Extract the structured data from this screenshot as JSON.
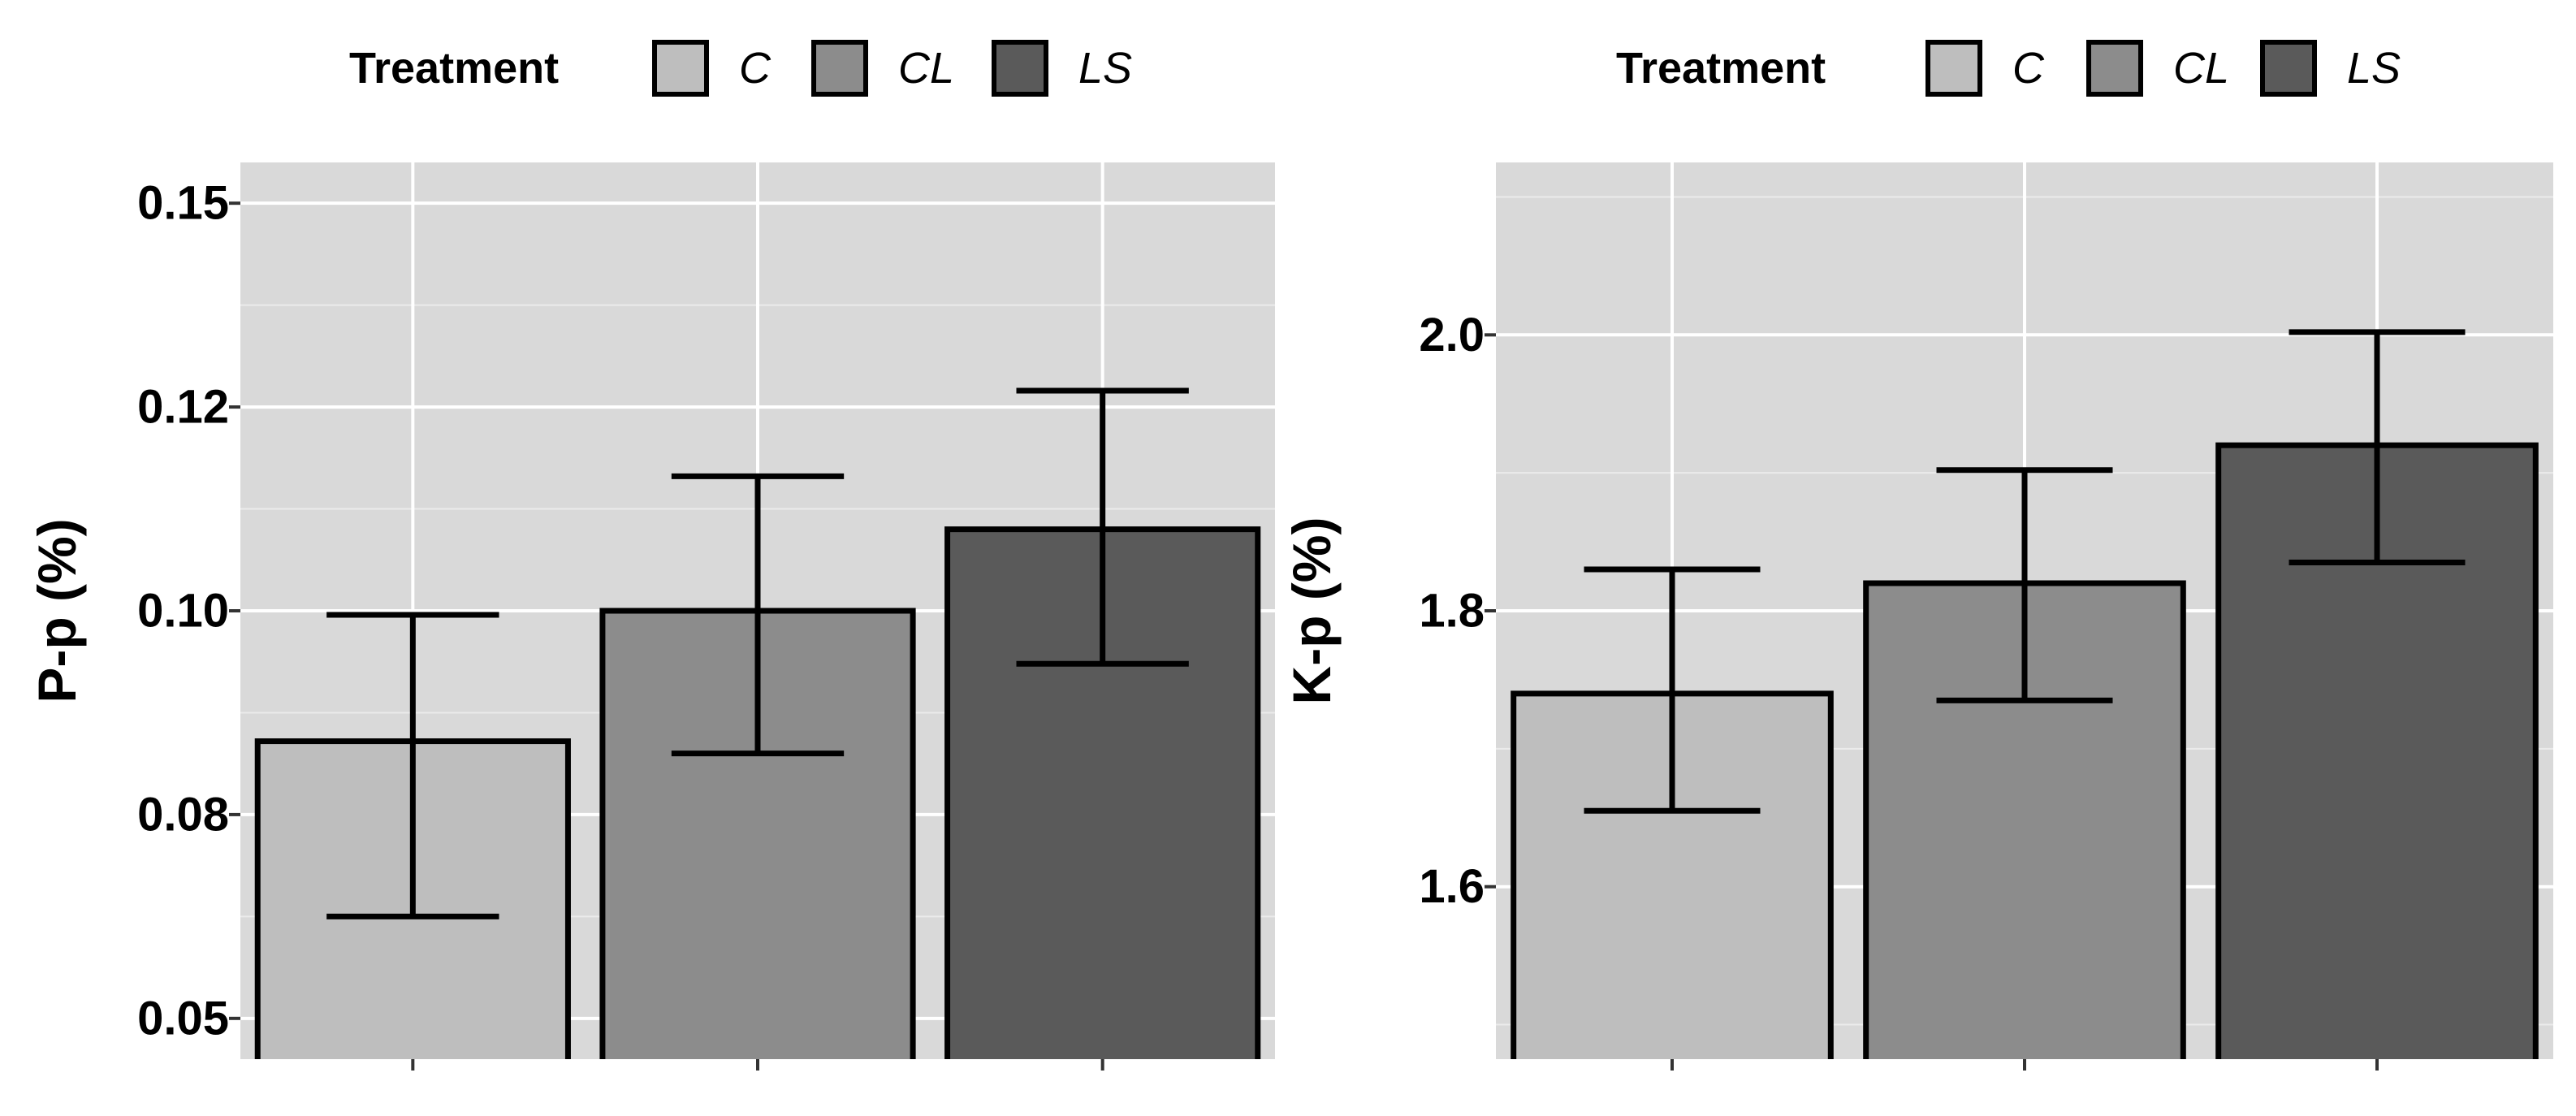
{
  "colors": {
    "panel_background": "#d9d9d9",
    "grid_major": "#ffffff",
    "grid_minor": "#ebebeb",
    "outline": "#000000"
  },
  "chart_data": [
    {
      "type": "bar",
      "xlabel": "",
      "ylabel": "P-p (%)",
      "categories": [
        "C",
        "CL",
        "LS"
      ],
      "values": [
        0.084,
        0.1,
        0.11
      ],
      "error_low": [
        0.0625,
        0.0825,
        0.0935
      ],
      "error_high": [
        0.0995,
        0.1165,
        0.127
      ],
      "ylim": [
        0.045,
        0.155
      ],
      "yticks": [
        0.05,
        0.075,
        0.1,
        0.125,
        0.15
      ],
      "ytick_labels": [
        "0.05",
        "0.08",
        "0.10",
        "0.12",
        "0.15"
      ],
      "bar_colors": [
        "#bebebe",
        "#8c8c8c",
        "#5a5a5a"
      ],
      "legend": {
        "title": "Treatment",
        "position": "top",
        "items": [
          {
            "label": "C",
            "color": "#bebebe"
          },
          {
            "label": "CL",
            "color": "#8c8c8c"
          },
          {
            "label": "LS",
            "color": "#5a5a5a"
          }
        ]
      },
      "grid": true
    },
    {
      "type": "bar",
      "xlabel": "",
      "ylabel": "K-p (%)",
      "categories": [
        "C",
        "CL",
        "LS"
      ],
      "values": [
        1.74,
        1.82,
        1.92
      ],
      "error_low": [
        1.655,
        1.735,
        1.835
      ],
      "error_high": [
        1.83,
        1.902,
        2.002
      ],
      "ylim": [
        1.475,
        2.125
      ],
      "yticks": [
        1.6,
        1.8,
        2.0
      ],
      "ytick_labels": [
        "1.6",
        "1.8",
        "2.0"
      ],
      "bar_colors": [
        "#bebebe",
        "#8c8c8c",
        "#5a5a5a"
      ],
      "legend": {
        "title": "Treatment",
        "position": "top",
        "items": [
          {
            "label": "C",
            "color": "#bebebe"
          },
          {
            "label": "CL",
            "color": "#8c8c8c"
          },
          {
            "label": "LS",
            "color": "#5a5a5a"
          }
        ]
      },
      "grid": true
    }
  ]
}
